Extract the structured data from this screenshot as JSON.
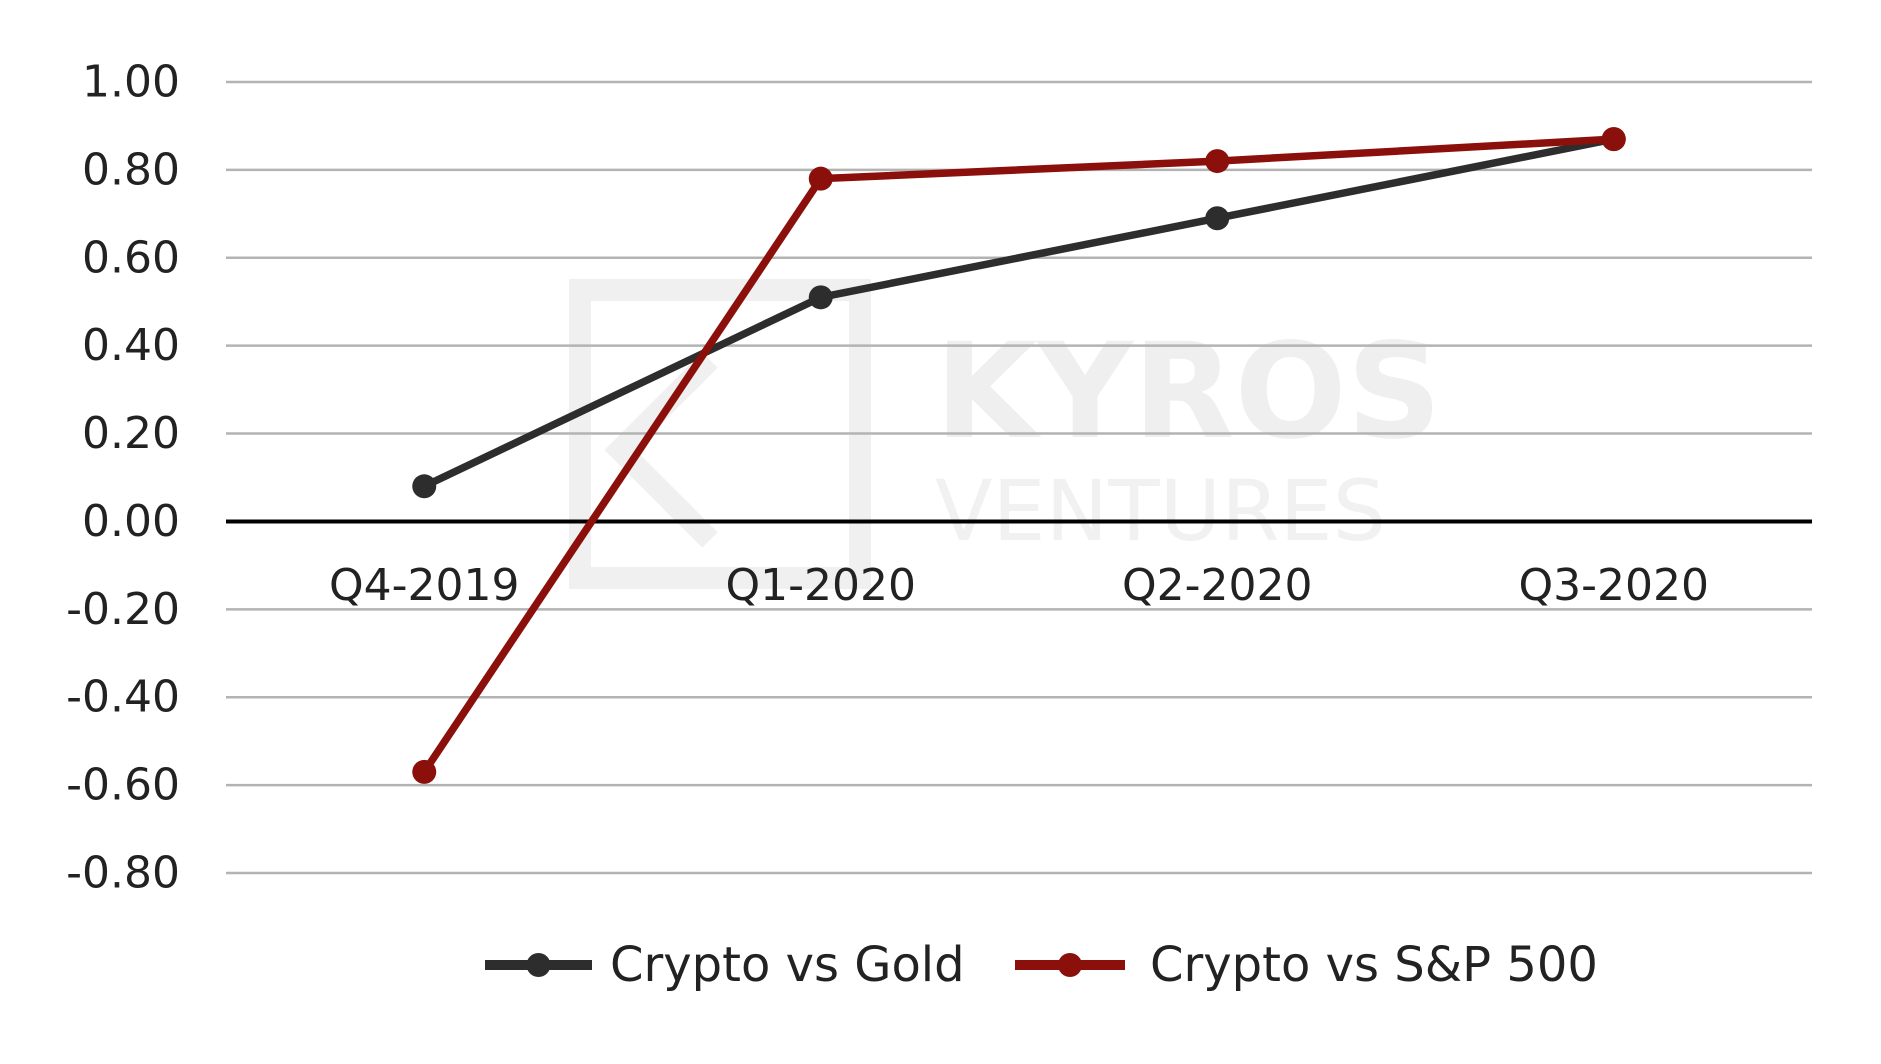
{
  "chart_data": {
    "type": "line",
    "categories": [
      "Q4-2019",
      "Q1-2020",
      "Q2-2020",
      "Q3-2020"
    ],
    "series": [
      {
        "name": "Crypto vs Gold",
        "values": [
          0.08,
          0.51,
          0.69,
          0.87
        ],
        "color": "#2d2d2d"
      },
      {
        "name": "Crypto vs S&P 500",
        "values": [
          -0.57,
          0.78,
          0.82,
          0.87
        ],
        "color": "#8b0f0a"
      }
    ],
    "ylim": [
      -0.8,
      1.0
    ],
    "yticks": [
      1.0,
      0.8,
      0.6,
      0.4,
      0.2,
      0.0,
      -0.2,
      -0.4,
      -0.6,
      -0.8
    ],
    "ytick_labels": [
      "1.00",
      "0.80",
      "0.60",
      "0.40",
      "0.20",
      "0.00",
      "-0.20",
      "-0.40",
      "-0.60",
      "-0.80"
    ],
    "grid": true,
    "zero_line_color": "#000000",
    "grid_color": "#b3b3b3",
    "legend_position": "bottom",
    "watermark": {
      "main": "KYROS",
      "sub": "VENTURES"
    }
  }
}
